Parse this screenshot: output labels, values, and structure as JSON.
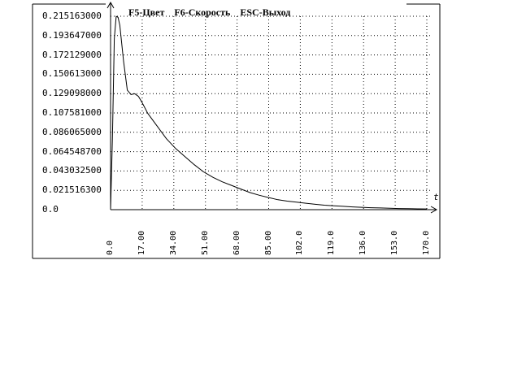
{
  "hotkeys": {
    "color": "F5-Цвет",
    "speed": "F6-Скорость",
    "exit": "ESC-Выход"
  },
  "chart_data": {
    "type": "line",
    "xlabel": "t",
    "ylabel": "",
    "y_tick_labels": [
      "0.215163000",
      "0.193647000",
      "0.172129000",
      "0.150613000",
      "0.129098000",
      "0.107581000",
      "0.086065000",
      "0.064548700",
      "0.043032500",
      "0.021516300",
      "0.0"
    ],
    "x_tick_labels": [
      "0.0",
      "17.00",
      "34.00",
      "51.00",
      "68.00",
      "85.00",
      "102.0",
      "119.0",
      "136.0",
      "153.0",
      "170.0"
    ],
    "xlim": [
      0,
      170
    ],
    "ylim": [
      0,
      0.237
    ],
    "grid": true,
    "series": [
      {
        "x": [
          0,
          1,
          2,
          3,
          4,
          5,
          7,
          9,
          11,
          13,
          15,
          17,
          20,
          25,
          30,
          35,
          40,
          45,
          50,
          55,
          60,
          65,
          70,
          75,
          80,
          85,
          90,
          95,
          100,
          105,
          110,
          115,
          120,
          125,
          130,
          135,
          140,
          145,
          150,
          155,
          160,
          165,
          170
        ],
        "y": [
          0,
          0.08,
          0.19,
          0.215,
          0.214,
          0.205,
          0.165,
          0.133,
          0.128,
          0.129,
          0.126,
          0.119,
          0.107,
          0.093,
          0.079,
          0.068,
          0.059,
          0.05,
          0.042,
          0.036,
          0.031,
          0.027,
          0.023,
          0.019,
          0.016,
          0.0135,
          0.011,
          0.0095,
          0.0083,
          0.0071,
          0.006,
          0.005,
          0.0043,
          0.0037,
          0.0031,
          0.0026,
          0.0022,
          0.0019,
          0.0016,
          0.0013,
          0.0011,
          0.0009,
          0.0008
        ]
      }
    ]
  }
}
